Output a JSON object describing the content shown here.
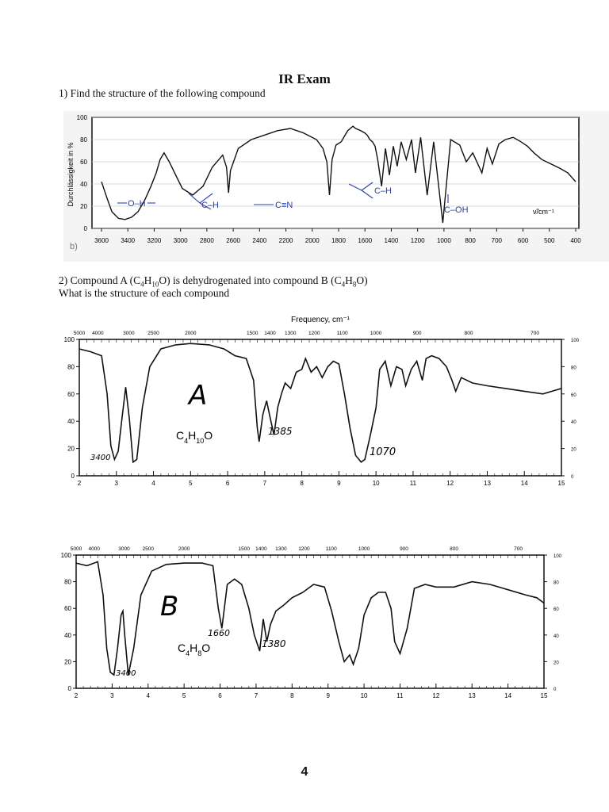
{
  "title": "IR Exam",
  "question1": "1) Find the structure of the following compound",
  "question2_line1_parts": [
    "2) Compound A (C",
    "4",
    "H",
    "10",
    "O) is dehydrogenated into compound B (C",
    "4",
    "H",
    "8",
    "O)"
  ],
  "question2_line2": "What is the structure of each compound",
  "page_number": "4",
  "chart_data": [
    {
      "type": "line",
      "ylabel": "Durchlässigkeit in %",
      "xunit": "ν̃/cm⁻¹",
      "panel_label": "b)",
      "x_ticks": [
        "3600",
        "3400",
        "3200",
        "3000",
        "2800",
        "2600",
        "2400",
        "2200",
        "2000",
        "1800",
        "1600",
        "1400",
        "1200",
        "1000",
        "800",
        "700",
        "600",
        "500",
        "400"
      ],
      "y_ticks": [
        "100",
        "80",
        "60",
        "40",
        "20",
        "0"
      ],
      "ylim": [
        0,
        100
      ],
      "annotations": [
        "O–H",
        "C–H",
        "C≡N",
        "C–H",
        "C–OH"
      ],
      "x": [
        0,
        0.4,
        0.8,
        1.3,
        1.8,
        2.3,
        2.8,
        3.3,
        3.8,
        4.2,
        4.5,
        4.8,
        5.2,
        5.7,
        6.2,
        7.0,
        7.8,
        8.5,
        9.3,
        9.6,
        9.75,
        9.9,
        10.5,
        11.5,
        12.5,
        13.5,
        14.5,
        15.5,
        16.5,
        17.0,
        17.3,
        17.5,
        17.7,
        18.0,
        18.4,
        18.7,
        18.9,
        19.1,
        19.3,
        19.5,
        19.7,
        19.9,
        20.2,
        20.4,
        20.6,
        20.8,
        21.0,
        21.2,
        21.5,
        21.8,
        22.1,
        22.4,
        22.7,
        23.0,
        23.4,
        23.8,
        24.1,
        24.5,
        25.0,
        25.5,
        26.2,
        26.8,
        27.5,
        28.0,
        28.5,
        29.2,
        29.6,
        30.0,
        30.5,
        31.0,
        31.6,
        32.2,
        32.7,
        33.2,
        33.8,
        34.5,
        35.2,
        35.8,
        36.4
      ],
      "y": [
        42,
        28,
        15,
        9,
        8,
        10,
        15,
        25,
        38,
        50,
        62,
        68,
        60,
        48,
        36,
        30,
        38,
        55,
        66,
        55,
        32,
        52,
        72,
        80,
        84,
        88,
        90,
        86,
        80,
        72,
        60,
        30,
        62,
        75,
        78,
        84,
        88,
        90,
        92,
        90,
        89,
        88,
        86,
        84,
        80,
        78,
        74,
        62,
        38,
        72,
        48,
        74,
        56,
        78,
        62,
        80,
        50,
        82,
        30,
        78,
        5,
        80,
        75,
        60,
        68,
        50,
        72,
        58,
        76,
        80,
        82,
        78,
        74,
        68,
        62,
        58,
        54,
        50,
        42
      ]
    },
    {
      "type": "line",
      "name": "A",
      "top_axis_label": "Frequency, cm⁻¹",
      "top_ticks": [
        "5000",
        "4000",
        "3000",
        "2500",
        "2000",
        "1500",
        "1400",
        "1300",
        "1200",
        "1100",
        "1000",
        "900",
        "800",
        "700"
      ],
      "x_ticks": [
        "2",
        "3",
        "4",
        "5",
        "6",
        "7",
        "8",
        "9",
        "10",
        "11",
        "12",
        "13",
        "14",
        "15"
      ],
      "y_ticks": [
        "100",
        "80",
        "60",
        "40",
        "20",
        "0"
      ],
      "xlim": [
        2,
        15
      ],
      "ylim": [
        0,
        100
      ],
      "formula_parts": [
        "C",
        "4",
        "H",
        "10",
        "O"
      ],
      "annotations": [
        "3400",
        "1385",
        "1070"
      ],
      "x": [
        2.0,
        2.3,
        2.6,
        2.75,
        2.85,
        2.95,
        3.05,
        3.15,
        3.25,
        3.35,
        3.45,
        3.55,
        3.7,
        3.9,
        4.2,
        4.6,
        5.0,
        5.5,
        5.9,
        6.2,
        6.5,
        6.7,
        6.8,
        6.85,
        6.95,
        7.05,
        7.15,
        7.25,
        7.3,
        7.35,
        7.45,
        7.55,
        7.7,
        7.85,
        8.0,
        8.1,
        8.25,
        8.4,
        8.55,
        8.7,
        8.85,
        9.0,
        9.15,
        9.3,
        9.45,
        9.6,
        9.7,
        9.85,
        10.0,
        10.1,
        10.25,
        10.4,
        10.55,
        10.7,
        10.8,
        10.95,
        11.1,
        11.25,
        11.35,
        11.5,
        11.7,
        11.9,
        12.05,
        12.15,
        12.3,
        12.6,
        13.0,
        13.5,
        14.0,
        14.5,
        15.0
      ],
      "y": [
        93,
        91,
        88,
        60,
        22,
        12,
        18,
        42,
        65,
        42,
        10,
        12,
        50,
        80,
        93,
        96,
        97,
        96,
        93,
        88,
        86,
        70,
        35,
        25,
        45,
        55,
        42,
        30,
        40,
        50,
        60,
        68,
        64,
        76,
        78,
        86,
        76,
        80,
        72,
        80,
        84,
        82,
        60,
        35,
        15,
        10,
        12,
        30,
        50,
        78,
        84,
        66,
        80,
        78,
        66,
        78,
        84,
        70,
        86,
        88,
        86,
        80,
        70,
        62,
        72,
        68,
        66,
        64,
        62,
        60,
        64
      ]
    },
    {
      "type": "line",
      "name": "B",
      "top_ticks": [
        "5000",
        "4000",
        "3000",
        "2500",
        "2000",
        "1500",
        "1400",
        "1300",
        "1200",
        "1100",
        "1000",
        "900",
        "800",
        "700"
      ],
      "x_ticks": [
        "2",
        "3",
        "4",
        "5",
        "6",
        "7",
        "8",
        "9",
        "10",
        "11",
        "12",
        "13",
        "14",
        "15"
      ],
      "y_ticks": [
        "100",
        "80",
        "60",
        "40",
        "20",
        "0"
      ],
      "xlim": [
        2,
        15
      ],
      "ylim": [
        0,
        100
      ],
      "formula_parts": [
        "C",
        "4",
        "H",
        "8",
        "O"
      ],
      "annotations": [
        "1660",
        "1380",
        "3400"
      ],
      "x": [
        2.0,
        2.3,
        2.6,
        2.75,
        2.85,
        2.95,
        3.05,
        3.15,
        3.25,
        3.3,
        3.35,
        3.45,
        3.6,
        3.8,
        4.1,
        4.5,
        5.0,
        5.5,
        5.8,
        5.95,
        6.05,
        6.2,
        6.4,
        6.6,
        6.8,
        6.95,
        7.1,
        7.2,
        7.3,
        7.4,
        7.55,
        7.75,
        8.0,
        8.3,
        8.6,
        8.9,
        9.1,
        9.3,
        9.45,
        9.6,
        9.7,
        9.85,
        10.0,
        10.2,
        10.4,
        10.6,
        10.75,
        10.85,
        11.0,
        11.2,
        11.4,
        11.7,
        12.0,
        12.5,
        13.0,
        13.5,
        14.0,
        14.5,
        14.8,
        15.0
      ],
      "y": [
        94,
        92,
        95,
        70,
        30,
        12,
        10,
        30,
        55,
        58,
        40,
        10,
        30,
        70,
        88,
        93,
        94,
        94,
        92,
        60,
        45,
        78,
        82,
        78,
        60,
        40,
        28,
        52,
        35,
        48,
        58,
        62,
        68,
        72,
        78,
        76,
        58,
        35,
        20,
        25,
        18,
        30,
        55,
        68,
        72,
        72,
        60,
        35,
        26,
        45,
        75,
        78,
        76,
        76,
        80,
        78,
        74,
        70,
        68,
        64
      ]
    }
  ]
}
